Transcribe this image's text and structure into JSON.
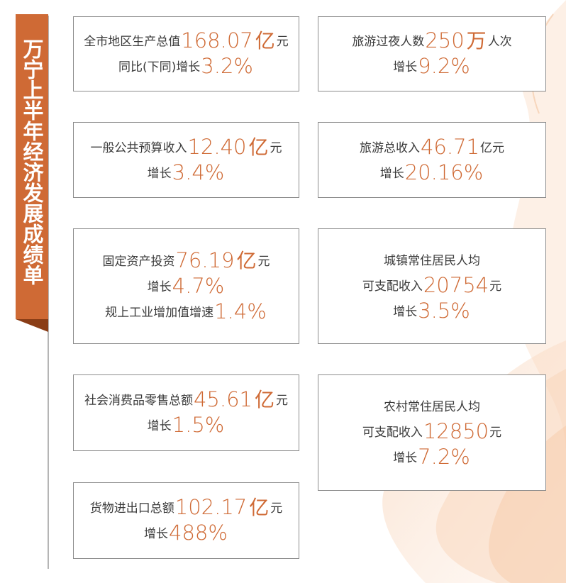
{
  "title": "万宁上半年经济发展成绩单",
  "colors": {
    "accent": "#cf6a35",
    "border": "#8c8c8c",
    "text": "#3a3a3a"
  },
  "cards": {
    "gdp": {
      "label": "全市地区生产总值",
      "value": "168.07",
      "unit_big": "亿",
      "unit": "元",
      "sub_label": "同比(下同)增长",
      "sub_value": "3.2%"
    },
    "overnight": {
      "label": "旅游过夜人数",
      "value": "250",
      "unit_big": "万",
      "unit": "人次",
      "sub_label": "增长",
      "sub_value": "9.2%"
    },
    "budget": {
      "label": "一般公共预算收入",
      "value": "12.40",
      "unit_big": "亿",
      "unit": "元",
      "sub_label": "增长",
      "sub_value": "3.4%"
    },
    "tourism_revenue": {
      "label": "旅游总收入",
      "value": "46.71",
      "unit": "亿元",
      "sub_label": "增长",
      "sub_value": "20.16%"
    },
    "investment": {
      "label": "固定资产投资",
      "value": "76.19",
      "unit_big": "亿",
      "unit": "元",
      "sub_label": "增长",
      "sub_value": "4.7%",
      "sub2_label": "规上工业增加值增速",
      "sub2_value": "1.4%"
    },
    "urban_income": {
      "label_top": "城镇常住居民人均",
      "label": "可支配收入",
      "value": "20754",
      "unit": "元",
      "sub_label": "增长",
      "sub_value": "3.5%"
    },
    "retail": {
      "label": "社会消费品零售总额",
      "value": "45.61",
      "unit_big": "亿",
      "unit": "元",
      "sub_label": "增长",
      "sub_value": "1.5%"
    },
    "rural_income": {
      "label_top": "农村常住居民人均",
      "label": "可支配收入",
      "value": "12850",
      "unit": "元",
      "sub_label": "增长",
      "sub_value": "7.2%"
    },
    "trade": {
      "label": "货物进出口总额",
      "value": "102.17",
      "unit_big": "亿",
      "unit": "元",
      "sub_label": "增长",
      "sub_value": "488%"
    }
  }
}
